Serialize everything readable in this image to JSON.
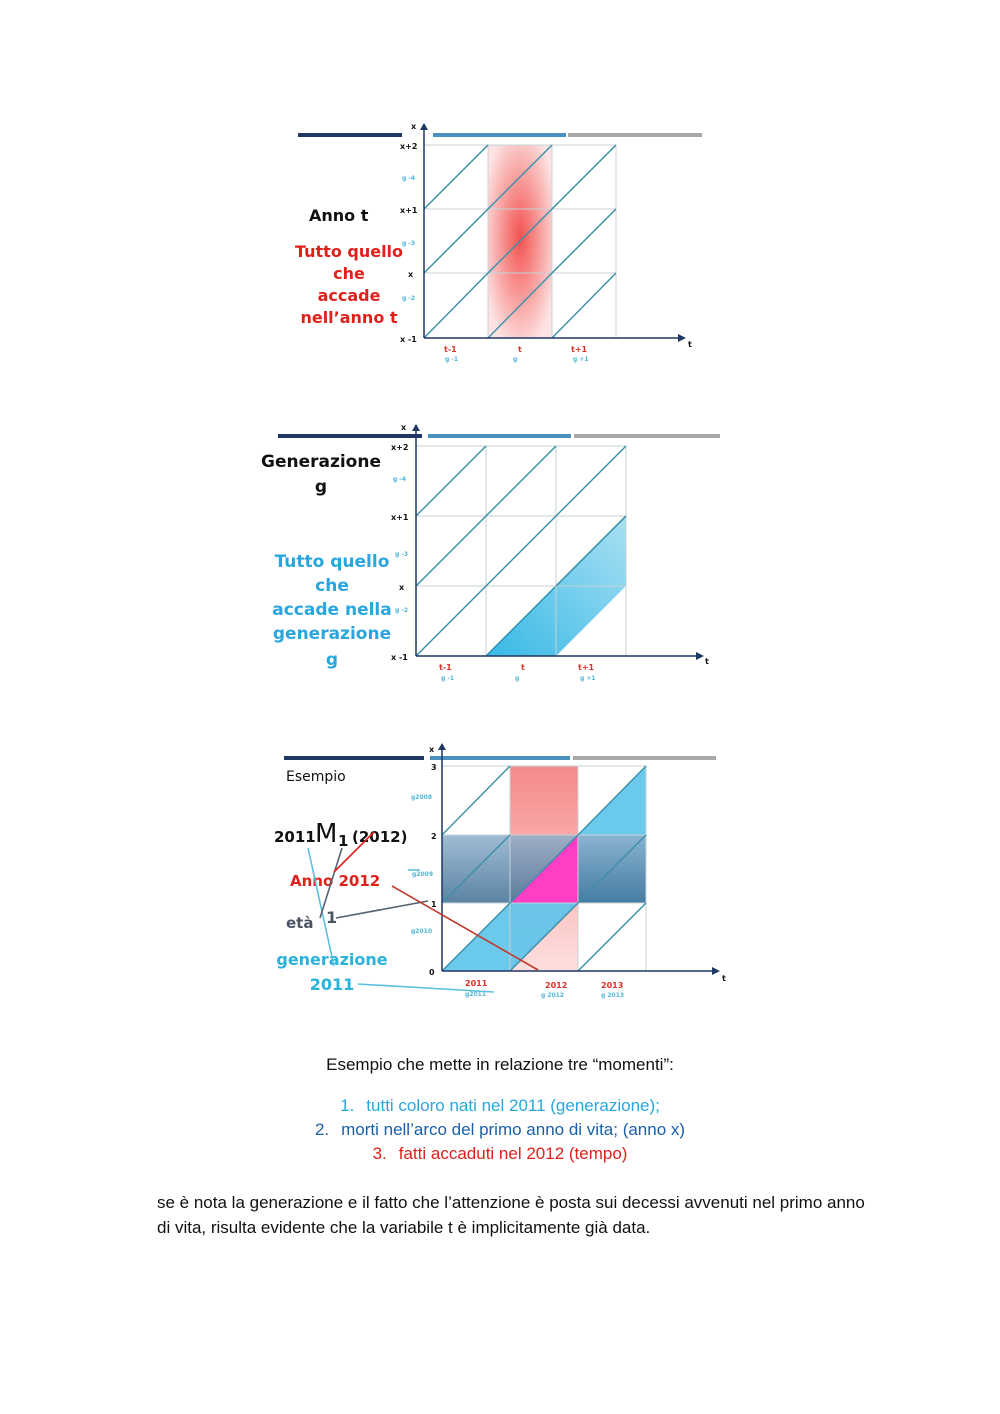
{
  "figure1": {
    "left_title": "Anno t",
    "left_text": [
      "Tutto quello",
      "che",
      "accade",
      "nell’anno t"
    ],
    "y_axis_name": "x",
    "y_labels": [
      "x+2",
      "x+1",
      "x",
      "x -1"
    ],
    "g_labels": [
      "g -4",
      "g -3",
      "g -2"
    ],
    "x_axis_name": "t",
    "x_labels": [
      "t-1",
      "t",
      "t+1"
    ],
    "x_sublabels": [
      "g -1",
      "g",
      "g +1"
    ]
  },
  "figure2": {
    "left_title": [
      "Generazione",
      "g"
    ],
    "left_text": [
      "Tutto quello",
      "che",
      "accade nella",
      "generazione",
      "g"
    ],
    "y_axis_name": "x",
    "y_labels": [
      "x+2",
      "x+1",
      "x",
      "x -1"
    ],
    "g_labels": [
      "g -4",
      "g -3",
      "g -2"
    ],
    "x_axis_name": "t",
    "x_labels": [
      "t-1",
      "t",
      "t+1"
    ],
    "x_sublabels": [
      "g -1",
      "g",
      "g +1"
    ]
  },
  "figure3": {
    "title": "Esempio",
    "formula_pre": "2011",
    "formula_main": "M",
    "formula_sub": "1",
    "formula_post": "(2012)",
    "anno_label": "Anno  2012",
    "eta_label": "età",
    "eta_value": "1",
    "gen_label": [
      "generazione",
      "2011"
    ],
    "y_axis_name": "x",
    "y_labels": [
      "3",
      "2",
      "1",
      "0"
    ],
    "g_labels": [
      "g2008",
      "g2009",
      "g2010"
    ],
    "x_axis_name": "t",
    "x_labels": [
      "2011",
      "2012",
      "2013"
    ],
    "x_sublabels": [
      "g2011",
      "g 2012",
      "g 2013"
    ]
  },
  "caption": "Esempio che mette in relazione tre “momenti”:",
  "list": [
    {
      "num": "1.",
      "text": "tutti coloro nati nel 2011 (generazione);"
    },
    {
      "num": "2.",
      "text": "morti nell’arco del primo anno di vita; (anno x)"
    },
    {
      "num": "3.",
      "text": "fatti accaduti nel 2012 (tempo)"
    }
  ],
  "paragraph": "se è nota la generazione e il fatto che l’attenzione è posta sui decessi avvenuti nel primo anno di vita, risulta evidente che la variabile t è implicitamente già data.",
  "colors": {
    "navy": "#1f3763",
    "blue": "#4a90bf",
    "gray": "#a8a8a8",
    "red_text": "#e0211b",
    "cyan_text": "#2aa6dc",
    "dark_blue_text": "#1b5fa8",
    "lexis_line": "#3a8fa8"
  }
}
